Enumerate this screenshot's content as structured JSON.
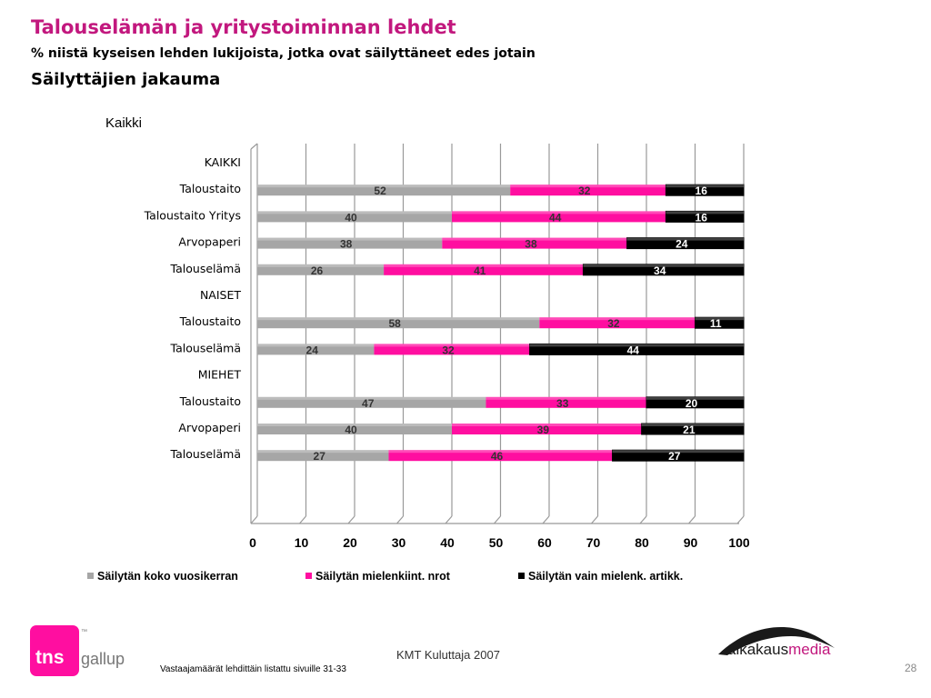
{
  "header": {
    "title": "Talouselämän ja yritystoiminnan lehdet",
    "subtitle": "% niistä kyseisen lehden lukijoista, jotka ovat säilyttäneet edes jotain",
    "subtitle2": "Säilyttäjien jakauma"
  },
  "chart_data": {
    "type": "bar",
    "orientation": "horizontal",
    "stacked": true,
    "title": "Kaikki",
    "categories": [
      "KAIKKI",
      "Taloustaito",
      "Taloustaito Yritys",
      "Arvopaperi",
      "Talouselämä",
      "NAISET",
      "Taloustaito",
      "Talouselämä",
      "MIEHET",
      "Taloustaito",
      "Arvopaperi",
      "Talouselämä"
    ],
    "group_headers": [
      "KAIKKI",
      "NAISET",
      "MIEHET"
    ],
    "series": [
      {
        "name": "Säilytän koko vuosikerran",
        "color": "#a6a6a6",
        "values": [
          null,
          52,
          40,
          38,
          26,
          null,
          58,
          24,
          null,
          47,
          40,
          27
        ]
      },
      {
        "name": "Säilytän mielenkiint. nrot",
        "color": "#ff0ea0",
        "values": [
          null,
          32,
          44,
          38,
          41,
          null,
          32,
          32,
          null,
          33,
          39,
          46
        ]
      },
      {
        "name": "Säilytän vain mielenk. artikk.",
        "color": "#000000",
        "values": [
          null,
          16,
          16,
          24,
          34,
          null,
          11,
          44,
          null,
          20,
          21,
          27
        ]
      }
    ],
    "xlim": [
      0,
      100
    ],
    "xticks": [
      0,
      10,
      20,
      30,
      40,
      50,
      60,
      70,
      80,
      90,
      100
    ],
    "grid": true,
    "legend": "bottom"
  },
  "footer": {
    "source": "KMT Kuluttaja 2007",
    "note": "Vastaajamäärät lehdittäin listattu sivuille 31-33",
    "page_number": "28"
  },
  "logos": {
    "tns": {
      "primary": "tns",
      "secondary": "gallup",
      "tm": "™"
    },
    "aikakausmedia": {
      "part1": "aikakaus",
      "part2": "media"
    }
  },
  "colors": {
    "title": "#c2187e",
    "magenta": "#ff0ea0",
    "grey": "#a6a6a6",
    "black": "#000000"
  }
}
